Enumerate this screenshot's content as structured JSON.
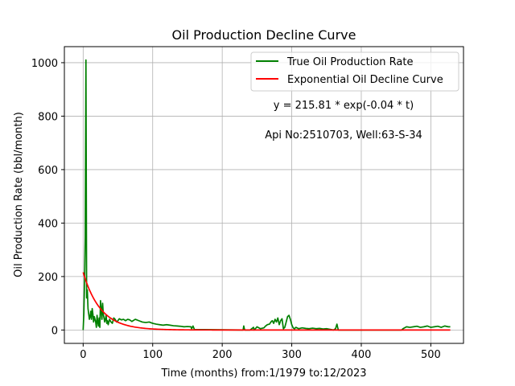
{
  "chart_data": {
    "type": "line",
    "title": "Oil Production Decline Curve",
    "xlabel": "Time (months) from:1/1979 to:12/2023",
    "ylabel": "Oil Production Rate (bbl/month)",
    "xlim": [
      -27,
      547
    ],
    "ylim": [
      -50,
      1060
    ],
    "xticks": [
      0,
      100,
      200,
      300,
      400,
      500
    ],
    "yticks": [
      0,
      200,
      400,
      600,
      800,
      1000
    ],
    "grid": true,
    "legend_position": "upper-right",
    "annotations": [
      "y = 215.81 * exp(-0.04 * t)",
      "Api No:2510703, Well:63-S-34"
    ],
    "series": [
      {
        "name": "True Oil Production Rate",
        "color": "#008000",
        "x": [
          0,
          1,
          2,
          3,
          4,
          5,
          6,
          7,
          8,
          9,
          10,
          11,
          12,
          13,
          14,
          15,
          16,
          17,
          18,
          19,
          20,
          21,
          22,
          23,
          24,
          25,
          26,
          27,
          28,
          29,
          30,
          31,
          32,
          33,
          34,
          35,
          36,
          38,
          40,
          42,
          44,
          46,
          48,
          50,
          52,
          55,
          58,
          61,
          64,
          67,
          70,
          75,
          80,
          85,
          90,
          95,
          100,
          105,
          110,
          115,
          120,
          125,
          130,
          135,
          140,
          145,
          150,
          155,
          156,
          158,
          160,
          230,
          231,
          232,
          233,
          234,
          240,
          245,
          246,
          250,
          255,
          260,
          262,
          265,
          268,
          270,
          272,
          274,
          276,
          278,
          280,
          282,
          284,
          286,
          288,
          290,
          292,
          294,
          296,
          298,
          300,
          302,
          304,
          306,
          310,
          315,
          320,
          325,
          330,
          335,
          340,
          345,
          350,
          360,
          363,
          365,
          366,
          367,
          370,
          380,
          390,
          400,
          410,
          420,
          430,
          440,
          450,
          458,
          460,
          465,
          470,
          475,
          480,
          485,
          490,
          495,
          500,
          505,
          510,
          515,
          520,
          525,
          528
        ],
        "y": [
          0,
          60,
          180,
          350,
          1010,
          120,
          150,
          80,
          60,
          40,
          50,
          70,
          40,
          80,
          60,
          30,
          50,
          40,
          30,
          10,
          55,
          30,
          15,
          45,
          10,
          110,
          80,
          40,
          100,
          60,
          45,
          30,
          40,
          55,
          25,
          35,
          20,
          40,
          30,
          25,
          45,
          40,
          30,
          35,
          42,
          38,
          40,
          35,
          40,
          38,
          32,
          40,
          35,
          30,
          28,
          30,
          25,
          22,
          20,
          18,
          20,
          18,
          16,
          15,
          14,
          12,
          13,
          12,
          5,
          15,
          2,
          0,
          15,
          3,
          0,
          0,
          0,
          10,
          0,
          12,
          5,
          8,
          14,
          20,
          22,
          30,
          35,
          25,
          40,
          30,
          45,
          20,
          35,
          42,
          5,
          10,
          30,
          50,
          55,
          40,
          20,
          8,
          5,
          10,
          5,
          8,
          6,
          5,
          7,
          5,
          6,
          4,
          5,
          0,
          5,
          22,
          10,
          0,
          0,
          0,
          0,
          0,
          0,
          0,
          0,
          0,
          0,
          0,
          5,
          12,
          10,
          12,
          14,
          10,
          12,
          15,
          10,
          12,
          14,
          10,
          15,
          12,
          12
        ]
      },
      {
        "name": "Exponential Oil Decline Curve",
        "color": "#ff0000",
        "equation": "y = 215.81 * exp(-0.04 * t)",
        "x_range": [
          0,
          528
        ]
      }
    ]
  }
}
